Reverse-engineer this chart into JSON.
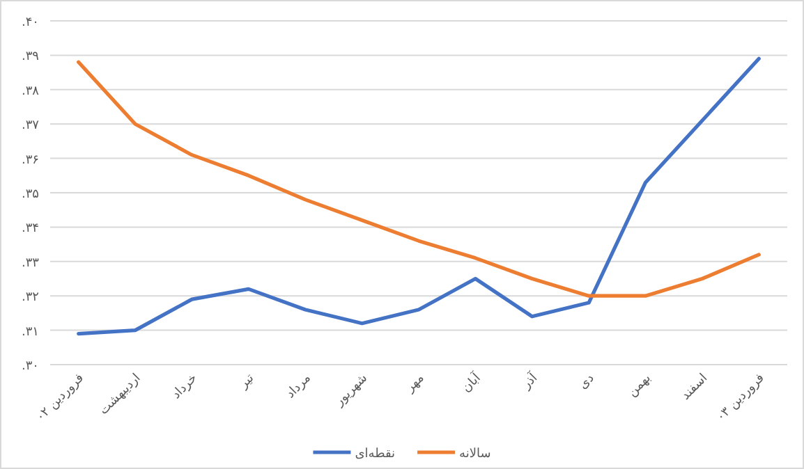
{
  "chart_data": {
    "type": "line",
    "categories": [
      "فروردین ۰۲",
      "اردیبهشت",
      "خرداد",
      "تیر",
      "مرداد",
      "شهریور",
      "مهر",
      "آبان",
      "آذر",
      "دی",
      "بهمن",
      "اسفند",
      "فروردین ۰۳"
    ],
    "series": [
      {
        "name": "نقطه‌ای",
        "color": "#4472c4",
        "values": [
          0.309,
          0.31,
          0.319,
          0.322,
          0.316,
          0.312,
          0.316,
          0.325,
          0.314,
          0.318,
          0.353,
          0.371,
          0.389
        ]
      },
      {
        "name": "سالانه",
        "color": "#ed7d31",
        "values": [
          0.388,
          0.37,
          0.361,
          0.355,
          0.348,
          0.342,
          0.336,
          0.331,
          0.325,
          0.32,
          0.32,
          0.325,
          0.332
        ]
      }
    ],
    "ylim": [
      0.3,
      0.4
    ],
    "yticks": [
      {
        "value": 0.3,
        "label": ".۳۰"
      },
      {
        "value": 0.31,
        "label": ".۳۱"
      },
      {
        "value": 0.32,
        "label": ".۳۲"
      },
      {
        "value": 0.33,
        "label": ".۳۳"
      },
      {
        "value": 0.34,
        "label": ".۳۴"
      },
      {
        "value": 0.35,
        "label": ".۳۵"
      },
      {
        "value": 0.36,
        "label": ".۳۶"
      },
      {
        "value": 0.37,
        "label": ".۳۷"
      },
      {
        "value": 0.38,
        "label": ".۳۸"
      },
      {
        "value": 0.39,
        "label": ".۳۹"
      },
      {
        "value": 0.4,
        "label": ".۴۰"
      }
    ],
    "grid": "y",
    "legend": "bottom",
    "marker": "none",
    "line_style": "solid"
  }
}
